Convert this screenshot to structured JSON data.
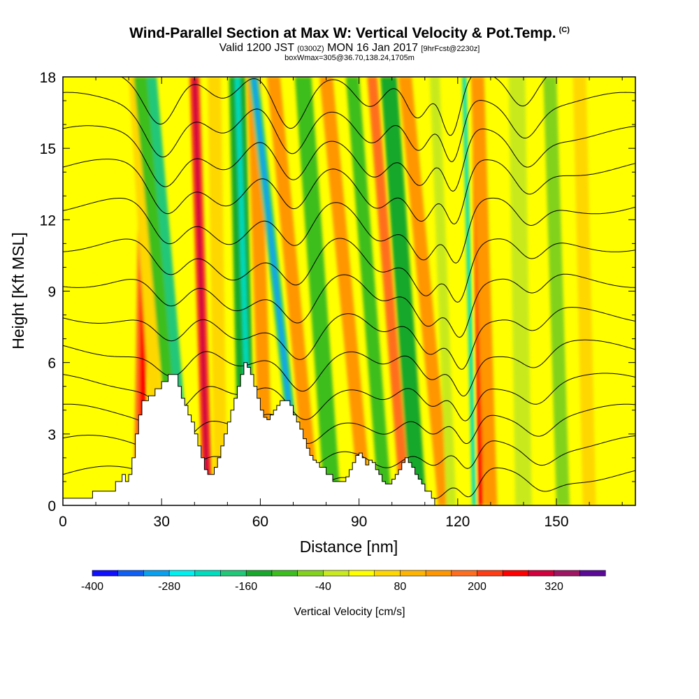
{
  "header": {
    "title": "Wind-Parallel Section at Max W: Vertical Velocity & Pot.Temp.",
    "copyright": "(C)",
    "valid_prefix": "Valid 1200 JST",
    "valid_utc": "(0300Z)",
    "valid_date": "MON 16 Jan 2017",
    "forecast": "[9hrFcst@2230z]",
    "box_info": "boxWmax=305@36.70,138.24,1705m"
  },
  "chart_data": {
    "type": "heatmap",
    "title": "Wind-Parallel Section at Max W: Vertical Velocity & Pot.Temp.",
    "xlabel": "Distance [nm]",
    "ylabel": "Height [Kft MSL]",
    "xlim": [
      0,
      174
    ],
    "ylim": [
      0,
      18
    ],
    "x_ticks": [
      0,
      30,
      60,
      90,
      120,
      150
    ],
    "y_ticks": [
      0,
      3,
      6,
      9,
      12,
      15,
      18
    ],
    "x_tick_labels": [
      "0",
      "30",
      "60",
      "90",
      "120",
      "150"
    ],
    "y_tick_labels": [
      "0",
      "3",
      "6",
      "9",
      "12",
      "15",
      "18"
    ],
    "colorbar": {
      "label": "Vertical Velocity [cm/s]",
      "min": -400,
      "max": 400,
      "step": 40,
      "tick_values": [
        -400,
        -280,
        -160,
        -40,
        80,
        200,
        320
      ],
      "tick_labels": [
        "-400",
        "-280",
        "-160",
        "-40",
        "80",
        "200",
        "320"
      ],
      "colors": [
        "#1010ff",
        "#0f5ff5",
        "#0aa0f0",
        "#00f0f0",
        "#00dcbe",
        "#20c878",
        "#18a82c",
        "#3cbe1e",
        "#82d21e",
        "#c8ea1e",
        "#ffff00",
        "#ffd700",
        "#ffb400",
        "#ff9600",
        "#ff6e1e",
        "#ff3c14",
        "#ff0000",
        "#d2003c",
        "#a01464",
        "#5a0a96"
      ]
    },
    "terrain_kft": [
      [
        0,
        0.3
      ],
      [
        8,
        0.3
      ],
      [
        9,
        0.6
      ],
      [
        15,
        0.6
      ],
      [
        16,
        1.0
      ],
      [
        18,
        1.3
      ],
      [
        19,
        1.0
      ],
      [
        20,
        1.3
      ],
      [
        21,
        2.0
      ],
      [
        22,
        3.0
      ],
      [
        23,
        3.8
      ],
      [
        24,
        4.4
      ],
      [
        26,
        4.6
      ],
      [
        28,
        4.9
      ],
      [
        30,
        5.2
      ],
      [
        32,
        5.5
      ],
      [
        34,
        5.5
      ],
      [
        35,
        5.0
      ],
      [
        36,
        4.5
      ],
      [
        37,
        4.2
      ],
      [
        38,
        3.8
      ],
      [
        39,
        3.5
      ],
      [
        40,
        3.0
      ],
      [
        41,
        2.5
      ],
      [
        42,
        2.0
      ],
      [
        43,
        1.5
      ],
      [
        44,
        1.3
      ],
      [
        45,
        1.3
      ],
      [
        46,
        1.6
      ],
      [
        47,
        2.0
      ],
      [
        48,
        2.5
      ],
      [
        49,
        3.0
      ],
      [
        50,
        3.5
      ],
      [
        51,
        4.0
      ],
      [
        52,
        4.5
      ],
      [
        53,
        5.0
      ],
      [
        54,
        5.5
      ],
      [
        55,
        6.0
      ],
      [
        56,
        5.8
      ],
      [
        57,
        5.5
      ],
      [
        58,
        5.0
      ],
      [
        59,
        4.5
      ],
      [
        60,
        4.0
      ],
      [
        61,
        3.7
      ],
      [
        62,
        3.6
      ],
      [
        63,
        3.8
      ],
      [
        64,
        4.0
      ],
      [
        65,
        4.2
      ],
      [
        66,
        4.4
      ],
      [
        68,
        4.4
      ],
      [
        69,
        4.2
      ],
      [
        70,
        3.8
      ],
      [
        71,
        3.5
      ],
      [
        72,
        3.2
      ],
      [
        73,
        2.8
      ],
      [
        74,
        2.4
      ],
      [
        75,
        2.1
      ],
      [
        76,
        1.9
      ],
      [
        77,
        1.8
      ],
      [
        78,
        1.6
      ],
      [
        80,
        1.3
      ],
      [
        82,
        1.0
      ],
      [
        85,
        1.0
      ],
      [
        86,
        1.2
      ],
      [
        87,
        1.5
      ],
      [
        88,
        1.8
      ],
      [
        89,
        2.1
      ],
      [
        90,
        2.2
      ],
      [
        91,
        2.0
      ],
      [
        92,
        1.7
      ],
      [
        93,
        1.9
      ],
      [
        94,
        1.8
      ],
      [
        95,
        1.5
      ],
      [
        96,
        1.3
      ],
      [
        97,
        1.0
      ],
      [
        98,
        0.9
      ],
      [
        99,
        0.9
      ],
      [
        100,
        1.1
      ],
      [
        101,
        1.3
      ],
      [
        102,
        1.5
      ],
      [
        103,
        1.8
      ],
      [
        104,
        2.0
      ],
      [
        105,
        1.8
      ],
      [
        106,
        1.6
      ],
      [
        107,
        1.3
      ],
      [
        108,
        1.1
      ],
      [
        109,
        0.9
      ],
      [
        110,
        0.6
      ],
      [
        112,
        0.3
      ],
      [
        113,
        0.0
      ],
      [
        174,
        0.0
      ]
    ],
    "vertical_velocity_bands": [
      {
        "x_base": 14,
        "x_top": 14,
        "width": 6,
        "value": 20
      },
      {
        "x_base": 23,
        "x_top": 25,
        "width": 3,
        "value": 160
      },
      {
        "x_base": 24,
        "x_top": 25,
        "width": 2,
        "value": 240
      },
      {
        "x_base": 30,
        "x_top": 22,
        "width": 4,
        "value": 40
      },
      {
        "x_base": 36,
        "x_top": 24,
        "width": 5,
        "value": -120
      },
      {
        "x_base": 38,
        "x_top": 27,
        "width": 3,
        "value": -200
      },
      {
        "x_base": 44,
        "x_top": 40,
        "width": 3,
        "value": 200
      },
      {
        "x_base": 44,
        "x_top": 40,
        "width": 1.5,
        "value": 280
      },
      {
        "x_base": 48,
        "x_top": 46,
        "width": 4,
        "value": 40
      },
      {
        "x_base": 56,
        "x_top": 53,
        "width": 5,
        "value": -160
      },
      {
        "x_base": 57,
        "x_top": 53,
        "width": 1.5,
        "value": -240
      },
      {
        "x_base": 62,
        "x_top": 58,
        "width": 4,
        "value": 120
      },
      {
        "x_base": 72,
        "x_top": 58,
        "width": 3,
        "value": -200
      },
      {
        "x_base": 72,
        "x_top": 58,
        "width": 1.2,
        "value": -320
      },
      {
        "x_base": 76,
        "x_top": 64,
        "width": 4,
        "value": 120
      },
      {
        "x_base": 82,
        "x_top": 73,
        "width": 5,
        "value": -120
      },
      {
        "x_base": 92,
        "x_top": 80,
        "width": 4,
        "value": 120
      },
      {
        "x_base": 98,
        "x_top": 88,
        "width": 4,
        "value": -120
      },
      {
        "x_base": 104,
        "x_top": 94,
        "width": 3,
        "value": 160
      },
      {
        "x_base": 108,
        "x_top": 99,
        "width": 5,
        "value": -160
      },
      {
        "x_base": 116,
        "x_top": 104,
        "width": 4,
        "value": 120
      },
      {
        "x_base": 118,
        "x_top": 113,
        "width": 3,
        "value": -40
      },
      {
        "x_base": 125,
        "x_top": 122,
        "width": 1.2,
        "value": -240
      },
      {
        "x_base": 127,
        "x_top": 125,
        "width": 1.5,
        "value": 240
      },
      {
        "x_base": 130,
        "x_top": 126,
        "width": 4,
        "value": 120
      },
      {
        "x_base": 140,
        "x_top": 138,
        "width": 5,
        "value": -40
      },
      {
        "x_base": 152,
        "x_top": 148,
        "width": 4,
        "value": -80
      },
      {
        "x_base": 160,
        "x_top": 157,
        "width": 4,
        "value": 40
      }
    ],
    "potential_temperature_contours": {
      "base_heights_kft": [
        1.3,
        2.6,
        3.9,
        5.2,
        6.6,
        8.0,
        9.5,
        11.0,
        12.6,
        14.2,
        15.6,
        17.0,
        18.4
      ],
      "dips": [
        {
          "x": 36,
          "depth_kft": 1.3,
          "width": 5
        },
        {
          "x": 55,
          "depth_kft": 1.0,
          "width": 6
        },
        {
          "x": 75,
          "depth_kft": 1.5,
          "width": 5
        },
        {
          "x": 100,
          "depth_kft": 1.0,
          "width": 5
        },
        {
          "x": 114,
          "depth_kft": 1.5,
          "width": 4
        },
        {
          "x": 124,
          "depth_kft": 1.8,
          "width": 3
        },
        {
          "x": 146,
          "depth_kft": 0.8,
          "width": 4
        }
      ]
    }
  }
}
